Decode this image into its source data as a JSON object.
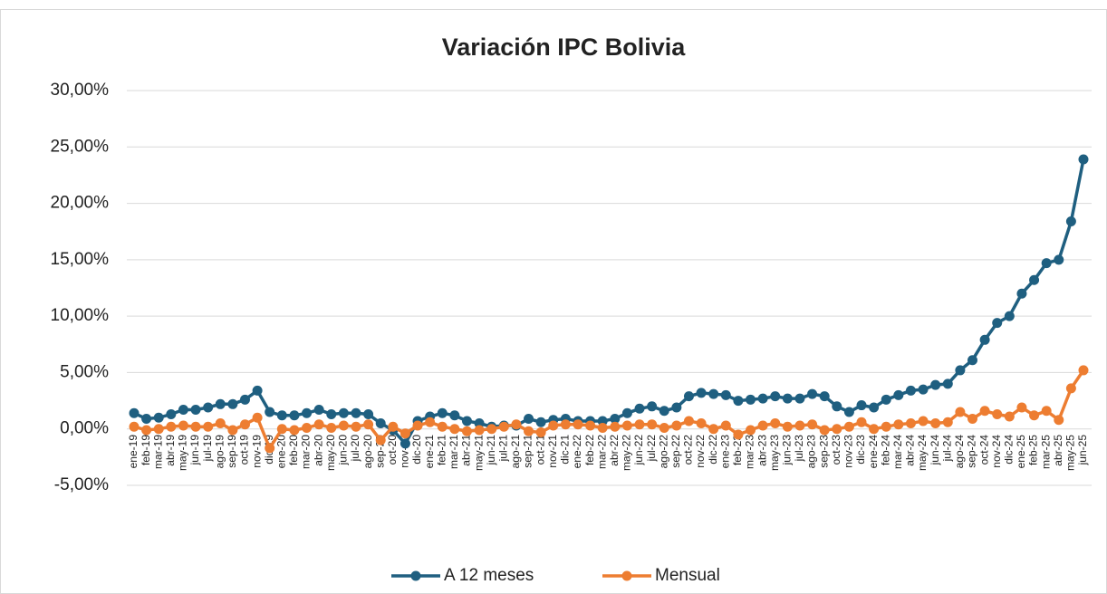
{
  "chart_data": {
    "type": "line",
    "title": "Variación IPC Bolivia",
    "categories": [
      "ene-19",
      "feb-19",
      "mar-19",
      "abr-19",
      "may-19",
      "jun-19",
      "jul-19",
      "ago-19",
      "sep-19",
      "oct-19",
      "nov-19",
      "dic-19",
      "ene-20",
      "feb-20",
      "mar-20",
      "abr-20",
      "may-20",
      "jun-20",
      "jul-20",
      "ago-20",
      "sep-20",
      "oct-20",
      "nov-20",
      "dic-20",
      "ene-21",
      "feb-21",
      "mar-21",
      "abr-21",
      "may-21",
      "jun-21",
      "jul-21",
      "ago-21",
      "sep-21",
      "oct-21",
      "nov-21",
      "dic-21",
      "ene-22",
      "feb-22",
      "mar-22",
      "abr-22",
      "may-22",
      "jun-22",
      "jul-22",
      "ago-22",
      "sep-22",
      "oct-22",
      "nov-22",
      "dic-22",
      "ene-23",
      "feb-23",
      "mar-23",
      "abr-23",
      "may-23",
      "jun-23",
      "jul-23",
      "ago-23",
      "sep-23",
      "oct-23",
      "nov-23",
      "dic-23",
      "ene-24",
      "feb-24",
      "mar-24",
      "abr-24",
      "may-24",
      "jun-24",
      "jul-24",
      "ago-24",
      "sep-24",
      "oct-24",
      "nov-24",
      "dic-24",
      "ene-25",
      "feb-25",
      "mar-25",
      "abr-25",
      "may-25",
      "jun-25"
    ],
    "series": [
      {
        "name": "A 12 meses",
        "color": "#1f5f80",
        "values": [
          1.4,
          0.9,
          1.0,
          1.3,
          1.7,
          1.7,
          1.9,
          2.2,
          2.2,
          2.6,
          3.4,
          1.5,
          1.2,
          1.2,
          1.4,
          1.7,
          1.3,
          1.4,
          1.4,
          1.3,
          0.5,
          -0.1,
          -1.3,
          0.7,
          1.1,
          1.4,
          1.2,
          0.7,
          0.5,
          0.2,
          0.3,
          0.3,
          0.9,
          0.6,
          0.8,
          0.9,
          0.7,
          0.7,
          0.7,
          0.9,
          1.4,
          1.8,
          2.0,
          1.6,
          1.9,
          2.9,
          3.2,
          3.1,
          3.0,
          2.5,
          2.6,
          2.7,
          2.9,
          2.7,
          2.7,
          3.1,
          2.9,
          2.0,
          1.5,
          2.1,
          1.9,
          2.6,
          3.0,
          3.4,
          3.5,
          3.9,
          4.0,
          5.2,
          6.1,
          7.9,
          9.4,
          10.0,
          12.0,
          13.2,
          14.7,
          15.0,
          18.4,
          23.9
        ]
      },
      {
        "name": "Mensual",
        "color": "#ed7d31",
        "values": [
          0.2,
          -0.1,
          0.0,
          0.2,
          0.3,
          0.2,
          0.2,
          0.5,
          -0.1,
          0.4,
          1.0,
          -1.7,
          0.0,
          -0.1,
          0.1,
          0.4,
          0.1,
          0.3,
          0.2,
          0.4,
          -1.0,
          0.2,
          -0.4,
          0.3,
          0.6,
          0.2,
          0.0,
          -0.2,
          -0.1,
          0.0,
          0.2,
          0.4,
          -0.2,
          -0.3,
          0.3,
          0.4,
          0.4,
          0.3,
          0.1,
          0.2,
          0.3,
          0.4,
          0.4,
          0.1,
          0.3,
          0.7,
          0.5,
          0.0,
          0.3,
          -0.5,
          -0.1,
          0.3,
          0.5,
          0.2,
          0.3,
          0.4,
          -0.1,
          0.0,
          0.2,
          0.6,
          0.0,
          0.2,
          0.4,
          0.5,
          0.7,
          0.5,
          0.6,
          1.5,
          0.9,
          1.6,
          1.3,
          1.1,
          1.9,
          1.2,
          1.6,
          0.8,
          3.6,
          5.2
        ]
      }
    ],
    "ylim": [
      -5,
      30
    ],
    "yticks": [
      {
        "value": -5,
        "label": "-5,00%"
      },
      {
        "value": 0,
        "label": "0,00%"
      },
      {
        "value": 5,
        "label": "5,00%"
      },
      {
        "value": 10,
        "label": "10,00%"
      },
      {
        "value": 15,
        "label": "15,00%"
      },
      {
        "value": 20,
        "label": "20,00%"
      },
      {
        "value": 25,
        "label": "25,00%"
      },
      {
        "value": 30,
        "label": "30,00%"
      }
    ],
    "grid": true,
    "legend": "bottom"
  }
}
